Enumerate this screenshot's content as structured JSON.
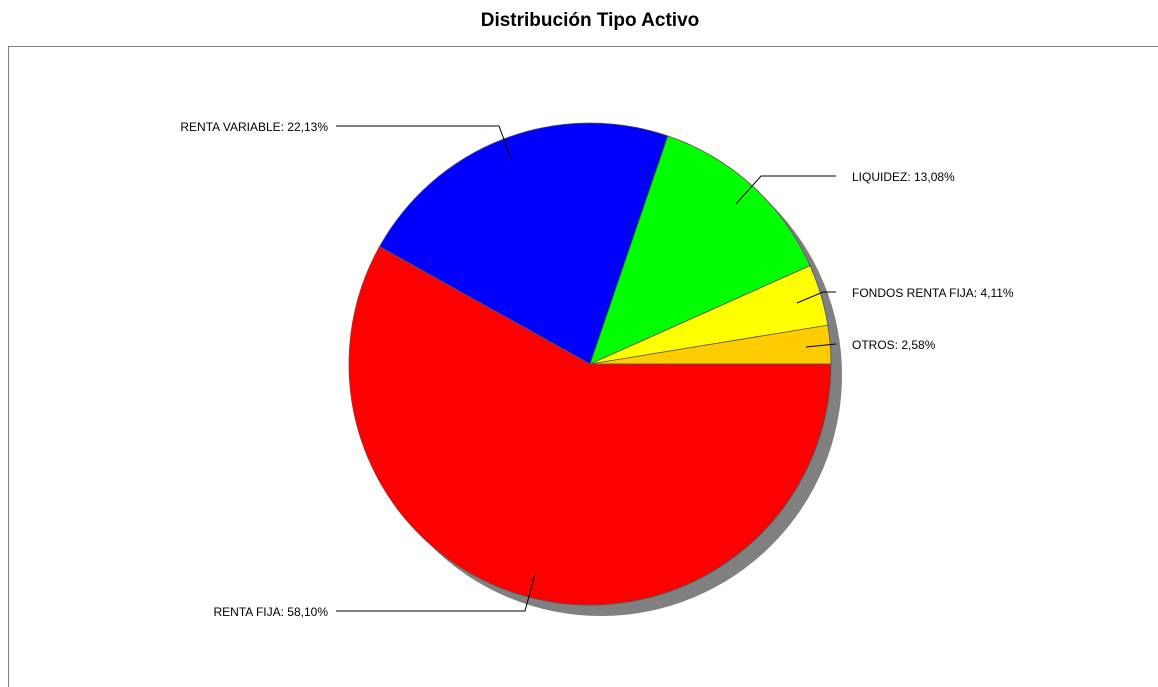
{
  "chart_data": {
    "type": "pie",
    "title": "Distribución Tipo Activo",
    "slices": [
      {
        "name": "OTROS",
        "value": 2.58,
        "label": "OTROS: 2,58%",
        "color": "#FFCC00"
      },
      {
        "name": "FONDOS RENTA FIJA",
        "value": 4.11,
        "label": "FONDOS RENTA FIJA: 4,11%",
        "color": "#FFFF00"
      },
      {
        "name": "LIQUIDEZ",
        "value": 13.08,
        "label": "LIQUIDEZ: 13,08%",
        "color": "#00FF00"
      },
      {
        "name": "RENTA VARIABLE",
        "value": 22.13,
        "label": "RENTA VARIABLE: 22,13%",
        "color": "#0000FF"
      },
      {
        "name": "RENTA FIJA",
        "value": 58.1,
        "label": "RENTA FIJA: 58,10%",
        "color": "#FF0000"
      }
    ],
    "shadow": true,
    "labels_with_leader_lines": true
  }
}
